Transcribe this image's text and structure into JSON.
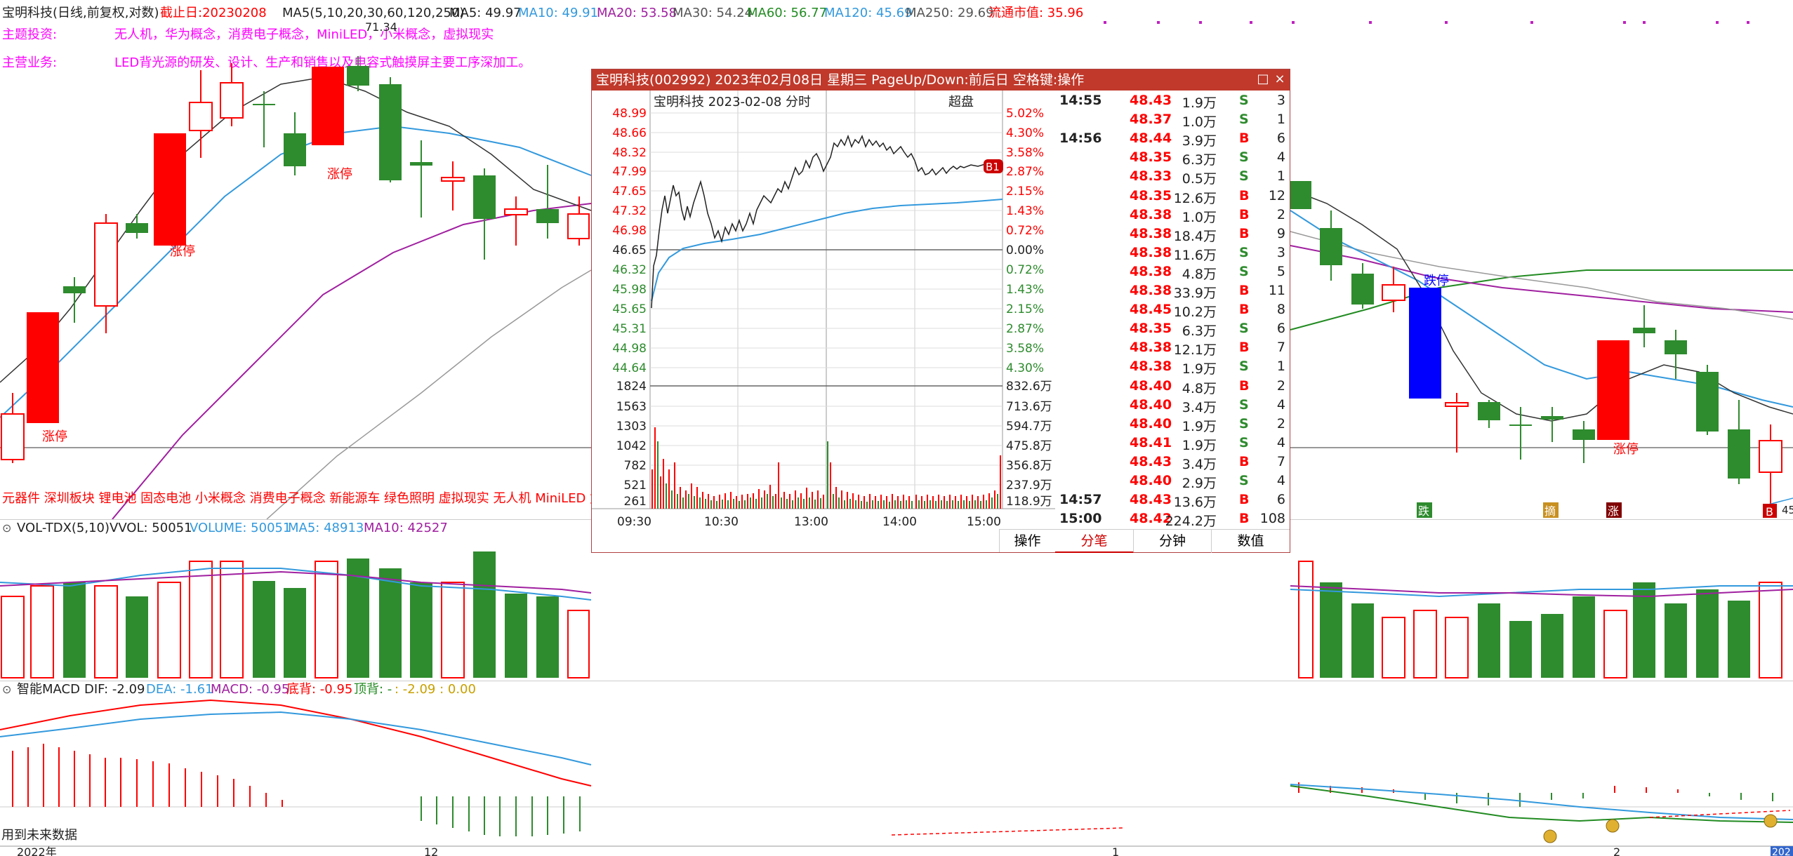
{
  "header": {
    "stock_title": "宝明科技(日线,前复权,对数)",
    "cutoff": "截止日:20230208",
    "ma_params": "MA5(5,10,20,30,60,120,250)",
    "ma5": "MA5: 49.97",
    "ma10": "MA10: 49.91",
    "ma20": "MA20: 53.58",
    "ma30": "MA30: 54.24",
    "ma60": "MA60: 56.77",
    "ma120": "MA120: 45.69",
    "ma250": "MA250: 29.69",
    "float_cap": "流通市值: 35.96"
  },
  "info": {
    "theme_label": "主题投资:",
    "theme_value": "无人机，华为概念，消费电子概念，MiniLED，小米概念，虚拟现实",
    "business_label": "主营业务:",
    "business_value": "LED背光源的研发、设计、生产和销售以及电容式触摸屏主要工序深加工。",
    "price_marker": "71.34"
  },
  "concepts": "元器件 深圳板块 锂电池 固态电池 小米概念 消费电子概念 新能源车 绿色照明 虚拟现实 无人机 MiniLED 复",
  "candle_labels": {
    "limit_up": "涨停",
    "limit_down": "跌停",
    "die": "跌",
    "zhai": "摘",
    "zhang": "涨",
    "b": "B",
    "right_price": "45"
  },
  "vol_header": {
    "name": "VOL-TDX(5,10)",
    "vvol": "VVOL: 50051",
    "volume": "VOLUME: 50051",
    "ma5": "MA5: 48913",
    "ma10": "MA10: 42527"
  },
  "macd_header": {
    "name": "智能MACD",
    "dif": "DIF: -2.09",
    "dea": "DEA: -1.61",
    "macd": "MACD: -0.95",
    "bottom": "底背: -0.95",
    "top": "顶背: -",
    "extra": ": -2.09 : 0.00"
  },
  "footer": {
    "future_note": "用到未来数据",
    "date_2022": "2022年",
    "date_12": "12",
    "date_1": "1",
    "date_2": "2",
    "date_right": "202"
  },
  "popup": {
    "title": "宝明科技(002992) 2023年02月08日 星期三 PageUp/Down:前后日 空格键:操作",
    "chart_title": "宝明科技   2023-02-08 分时",
    "superorder": "超盘",
    "b1": "B1",
    "price_ticks": [
      "48.99",
      "48.66",
      "48.32",
      "47.99",
      "47.65",
      "47.32",
      "46.98",
      "46.65",
      "46.32",
      "45.98",
      "45.65",
      "45.31",
      "44.98",
      "44.64"
    ],
    "pct_ticks": [
      "5.02%",
      "4.30%",
      "3.58%",
      "2.87%",
      "2.15%",
      "1.43%",
      "0.72%",
      "0.00%",
      "0.72%",
      "1.43%",
      "2.15%",
      "2.87%",
      "3.58%",
      "4.30%"
    ],
    "vol_ticks_left": [
      "1824",
      "1563",
      "1303",
      "1042",
      "782",
      "521",
      "261"
    ],
    "vol_ticks_right": [
      "832.6万",
      "713.6万",
      "594.7万",
      "475.8万",
      "356.8万",
      "237.9万",
      "118.9万"
    ],
    "time_ticks": [
      "09:30",
      "10:30",
      "13:00",
      "14:00",
      "15:00"
    ],
    "op_label": "操作",
    "tabs": [
      "分笔",
      "分钟",
      "数值"
    ]
  },
  "ticks": [
    {
      "time": "14:55",
      "price": "48.43",
      "vol": "1.9万",
      "side": "S",
      "n": "3"
    },
    {
      "time": "",
      "price": "48.37",
      "vol": "1.0万",
      "side": "S",
      "n": "1"
    },
    {
      "time": "14:56",
      "price": "48.44",
      "vol": "3.9万",
      "side": "B",
      "n": "6"
    },
    {
      "time": "",
      "price": "48.35",
      "vol": "6.3万",
      "side": "S",
      "n": "4"
    },
    {
      "time": "",
      "price": "48.33",
      "vol": "0.5万",
      "side": "S",
      "n": "1"
    },
    {
      "time": "",
      "price": "48.35",
      "vol": "12.6万",
      "side": "B",
      "n": "12"
    },
    {
      "time": "",
      "price": "48.38",
      "vol": "1.0万",
      "side": "B",
      "n": "2"
    },
    {
      "time": "",
      "price": "48.38",
      "vol": "18.4万",
      "side": "B",
      "n": "9"
    },
    {
      "time": "",
      "price": "48.38",
      "vol": "11.6万",
      "side": "S",
      "n": "3"
    },
    {
      "time": "",
      "price": "48.38",
      "vol": "4.8万",
      "side": "S",
      "n": "5"
    },
    {
      "time": "",
      "price": "48.38",
      "vol": "33.9万",
      "side": "B",
      "n": "11"
    },
    {
      "time": "",
      "price": "48.45",
      "vol": "10.2万",
      "side": "B",
      "n": "8"
    },
    {
      "time": "",
      "price": "48.35",
      "vol": "6.3万",
      "side": "S",
      "n": "6"
    },
    {
      "time": "",
      "price": "48.38",
      "vol": "12.1万",
      "side": "B",
      "n": "7"
    },
    {
      "time": "",
      "price": "48.38",
      "vol": "1.9万",
      "side": "S",
      "n": "1"
    },
    {
      "time": "",
      "price": "48.40",
      "vol": "4.8万",
      "side": "B",
      "n": "2"
    },
    {
      "time": "",
      "price": "48.40",
      "vol": "3.4万",
      "side": "S",
      "n": "4"
    },
    {
      "time": "",
      "price": "48.40",
      "vol": "1.9万",
      "side": "S",
      "n": "2"
    },
    {
      "time": "",
      "price": "48.41",
      "vol": "1.9万",
      "side": "S",
      "n": "4"
    },
    {
      "time": "",
      "price": "48.43",
      "vol": "3.4万",
      "side": "B",
      "n": "7"
    },
    {
      "time": "",
      "price": "48.40",
      "vol": "2.9万",
      "side": "S",
      "n": "4"
    },
    {
      "time": "14:57",
      "price": "48.43",
      "vol": "13.6万",
      "side": "B",
      "n": "6"
    },
    {
      "time": "15:00",
      "price": "48.42",
      "vol": "224.2万",
      "side": "B",
      "n": "108"
    }
  ],
  "colors": {
    "up": "#ff0000",
    "down": "#2e8b2e",
    "limit_down_bar": "#0000ff",
    "ma5": "#333333",
    "ma10": "#3399dd",
    "ma20": "#a020a0",
    "ma60": "#228b22",
    "ma250": "#999999",
    "title_bar": "#c0392b"
  }
}
